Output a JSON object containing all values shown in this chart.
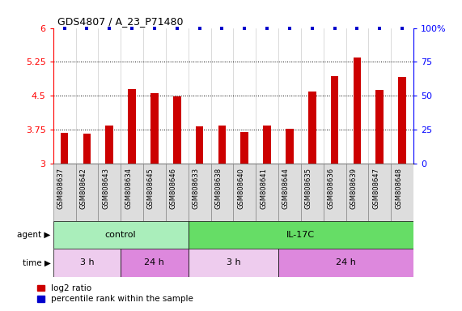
{
  "title": "GDS4807 / A_23_P71480",
  "samples": [
    "GSM808637",
    "GSM808642",
    "GSM808643",
    "GSM808634",
    "GSM808645",
    "GSM808646",
    "GSM808633",
    "GSM808638",
    "GSM808640",
    "GSM808641",
    "GSM808644",
    "GSM808635",
    "GSM808636",
    "GSM808639",
    "GSM808647",
    "GSM808648"
  ],
  "log2_values": [
    3.68,
    3.65,
    3.84,
    4.65,
    4.56,
    4.48,
    3.82,
    3.84,
    3.7,
    3.84,
    3.76,
    4.6,
    4.93,
    5.35,
    4.63,
    4.92
  ],
  "percentile_values": [
    100,
    100,
    100,
    100,
    100,
    100,
    100,
    100,
    100,
    100,
    100,
    100,
    100,
    100,
    100,
    100
  ],
  "bar_color": "#cc0000",
  "percentile_color": "#0000cc",
  "ylim_left": [
    3.0,
    6.0
  ],
  "ylim_right": [
    0,
    100
  ],
  "yticks_left": [
    3.0,
    3.75,
    4.5,
    5.25,
    6.0
  ],
  "yticks_right": [
    0,
    25,
    50,
    75,
    100
  ],
  "ytick_labels_left": [
    "3",
    "3.75",
    "4.5",
    "5.25",
    "6"
  ],
  "ytick_labels_right": [
    "0",
    "25",
    "50",
    "75",
    "100%"
  ],
  "hlines": [
    3.75,
    4.5,
    5.25
  ],
  "agent_groups": [
    {
      "label": "control",
      "start": 0,
      "end": 6,
      "color": "#aaeebb"
    },
    {
      "label": "IL-17C",
      "start": 6,
      "end": 16,
      "color": "#66dd66"
    }
  ],
  "time_groups": [
    {
      "label": "3 h",
      "start": 0,
      "end": 3,
      "color": "#eeccee"
    },
    {
      "label": "24 h",
      "start": 3,
      "end": 6,
      "color": "#dd88dd"
    },
    {
      "label": "3 h",
      "start": 6,
      "end": 10,
      "color": "#eeccee"
    },
    {
      "label": "24 h",
      "start": 10,
      "end": 16,
      "color": "#dd88dd"
    }
  ],
  "legend_items": [
    {
      "label": "log2 ratio",
      "color": "#cc0000"
    },
    {
      "label": "percentile rank within the sample",
      "color": "#0000cc"
    }
  ],
  "agent_label": "agent",
  "time_label": "time",
  "background_color": "#ffffff",
  "tick_bg_color": "#dddddd",
  "tick_border_color": "#888888"
}
